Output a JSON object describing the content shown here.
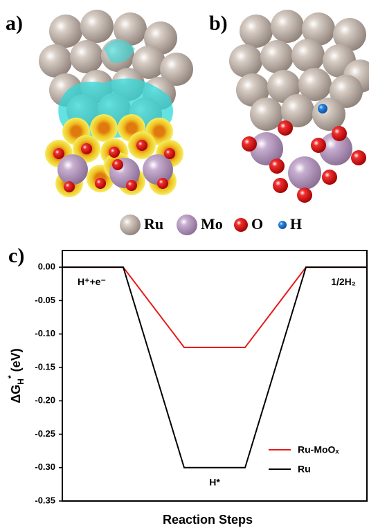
{
  "panels": {
    "a": "a)",
    "b": "b)",
    "c": "c)"
  },
  "atom_legend": [
    "Ru",
    "Mo",
    "O",
    "H"
  ],
  "chart_data": {
    "type": "line",
    "x": [
      0,
      1,
      2,
      3,
      4,
      5
    ],
    "xlim": [
      0,
      5
    ],
    "ylim": [
      -0.35,
      0.025
    ],
    "yticks": [
      {
        "value": 0,
        "label": "0.00"
      },
      {
        "value": -0.05,
        "label": "-0.05"
      },
      {
        "value": -0.1,
        "label": "-0.10"
      },
      {
        "value": -0.15,
        "label": "-0.15"
      },
      {
        "value": -0.2,
        "label": "-0.20"
      },
      {
        "value": -0.25,
        "label": "-0.25"
      },
      {
        "value": -0.3,
        "label": "-0.30"
      },
      {
        "value": -0.35,
        "label": "-0.35"
      }
    ],
    "ylabel": {
      "main": "ΔG",
      "sub": "H",
      "sup": "*",
      "unit": " (eV)"
    },
    "xlabel": "Reaction Steps",
    "annotations": [
      "H⁺+e⁻",
      "H*",
      "1/2H₂"
    ],
    "legend": "lower right",
    "series": [
      {
        "name": "Ru-MoOₓ",
        "color": "#e8191b",
        "values": [
          0,
          0,
          -0.12,
          -0.12,
          0,
          0
        ]
      },
      {
        "name": "Ru",
        "color": "#000000",
        "values": [
          0,
          0,
          -0.3,
          -0.3,
          0,
          0
        ]
      }
    ]
  }
}
